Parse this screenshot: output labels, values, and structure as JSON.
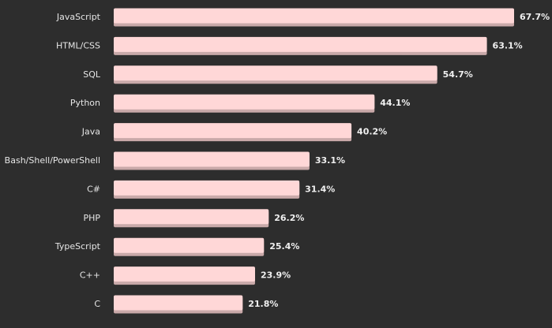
{
  "chart_data": {
    "type": "bar",
    "orientation": "horizontal",
    "categories": [
      "JavaScript",
      "HTML/CSS",
      "SQL",
      "Python",
      "Java",
      "Bash/Shell/PowerShell",
      "C#",
      "PHP",
      "TypeScript",
      "C++",
      "C"
    ],
    "values": [
      67.7,
      63.1,
      54.7,
      44.1,
      40.2,
      33.1,
      31.4,
      26.2,
      25.4,
      23.9,
      21.8
    ],
    "value_labels": [
      "67.7%",
      "63.1%",
      "54.7%",
      "44.1%",
      "40.2%",
      "33.1%",
      "31.4%",
      "26.2%",
      "25.4%",
      "23.9%",
      "21.8%"
    ],
    "title": "",
    "xlabel": "",
    "ylabel": "",
    "xlim": [
      0,
      67.7
    ],
    "grid": false,
    "legend": "none",
    "colors": {
      "background": "#2d2d2d",
      "bar": "#ffd7d7",
      "bar_shadow": "#c9a9a9",
      "category_text": "#e6e6e6",
      "value_text": "#f0f0f0"
    }
  }
}
